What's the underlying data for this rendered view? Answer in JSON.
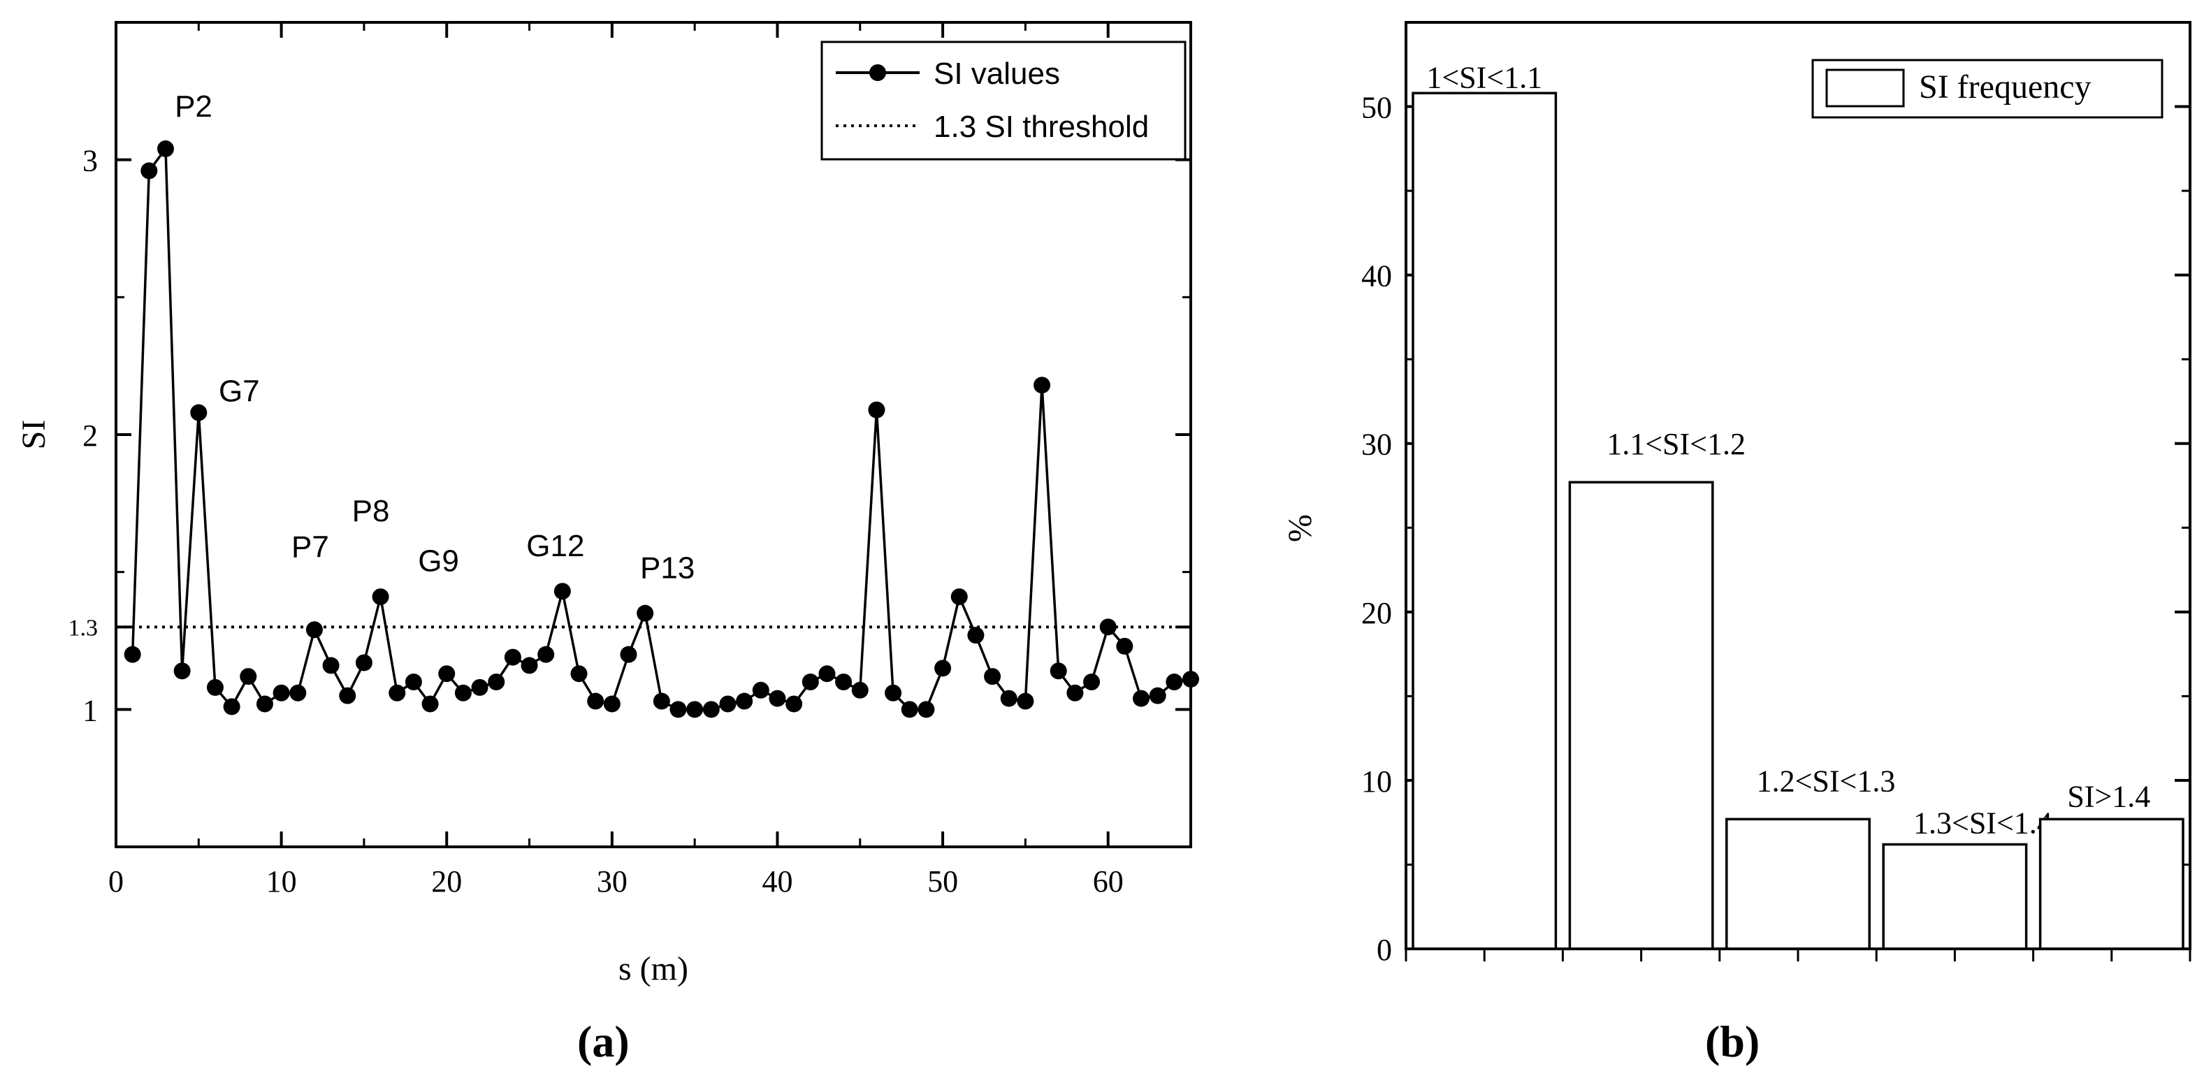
{
  "panel_labels": {
    "a": "(a)",
    "b": "(b)"
  },
  "chart_data": [
    {
      "type": "line",
      "panel": "a",
      "title": "",
      "xlabel": "s (m)",
      "ylabel": "SI",
      "xlim": [
        0,
        65
      ],
      "ylim": [
        0.5,
        3.5
      ],
      "xticks": [
        0,
        10,
        20,
        30,
        40,
        50,
        60
      ],
      "xtick_labels": [
        "0",
        "10",
        "20",
        "30",
        "40",
        "50",
        "60"
      ],
      "yticks": [
        1,
        1.3,
        2,
        3
      ],
      "ytick_labels": [
        "1",
        "1.3",
        "2",
        "3"
      ],
      "legend": {
        "position": "top-right",
        "entries": [
          "SI values",
          "1.3 SI threshold"
        ]
      },
      "series": [
        {
          "name": "SI values",
          "x": [
            1,
            2,
            3,
            4,
            5,
            6,
            7,
            8,
            9,
            10,
            11,
            12,
            13,
            14,
            15,
            16,
            17,
            18,
            19,
            20,
            21,
            22,
            23,
            24,
            25,
            26,
            27,
            28,
            29,
            30,
            31,
            32,
            33,
            34,
            35,
            36,
            37,
            38,
            39,
            40,
            41,
            42,
            43,
            44,
            45,
            46,
            47,
            48,
            49,
            50,
            51,
            52,
            53,
            54,
            55,
            56,
            57,
            58,
            59,
            60,
            61,
            62,
            63,
            64,
            65
          ],
          "values": [
            1.2,
            2.96,
            3.04,
            1.14,
            2.08,
            1.08,
            1.01,
            1.12,
            1.02,
            1.06,
            1.06,
            1.29,
            1.16,
            1.05,
            1.17,
            1.41,
            1.06,
            1.1,
            1.02,
            1.13,
            1.06,
            1.08,
            1.1,
            1.19,
            1.16,
            1.2,
            1.43,
            1.13,
            1.03,
            1.02,
            1.2,
            1.35,
            1.03,
            1.0,
            1.0,
            1.0,
            1.02,
            1.03,
            1.07,
            1.04,
            1.02,
            1.1,
            1.13,
            1.1,
            1.07,
            2.09,
            1.06,
            1.0,
            1.0,
            1.15,
            1.41,
            1.27,
            1.12,
            1.04,
            1.03,
            2.18,
            1.14,
            1.06,
            1.1,
            1.3,
            1.23,
            1.04,
            1.05,
            1.1,
            1.11
          ]
        },
        {
          "name": "1.3 SI threshold",
          "style": "dotted",
          "value": 1.3
        }
      ],
      "annotations": [
        {
          "text": "P2",
          "x": 3,
          "y": 3.04
        },
        {
          "text": "G7",
          "x": 5,
          "y": 2.08
        },
        {
          "text": "P7",
          "x": 12,
          "y": 1.29
        },
        {
          "text": "P8",
          "x": 16,
          "y": 1.41
        },
        {
          "text": "G9",
          "x": 19,
          "y": 1.02
        },
        {
          "text": "G12",
          "x": 27,
          "y": 1.43
        },
        {
          "text": "P13",
          "x": 32,
          "y": 1.35
        }
      ]
    },
    {
      "type": "bar",
      "panel": "b",
      "title": "",
      "xlabel": "",
      "ylabel": "%",
      "ylim": [
        0,
        55
      ],
      "yticks": [
        0,
        10,
        20,
        30,
        40,
        50
      ],
      "ytick_labels": [
        "0",
        "10",
        "20",
        "30",
        "40",
        "50"
      ],
      "legend": {
        "position": "top-right",
        "entries": [
          "SI frequency"
        ]
      },
      "categories": [
        "1<SI<1.1",
        "1.1<SI<1.2",
        "1.2<SI<1.3",
        "1.3<SI<1.4",
        "SI>1.4"
      ],
      "series": [
        {
          "name": "SI frequency",
          "values": [
            50.8,
            27.7,
            7.7,
            6.2,
            7.7
          ]
        }
      ]
    }
  ]
}
